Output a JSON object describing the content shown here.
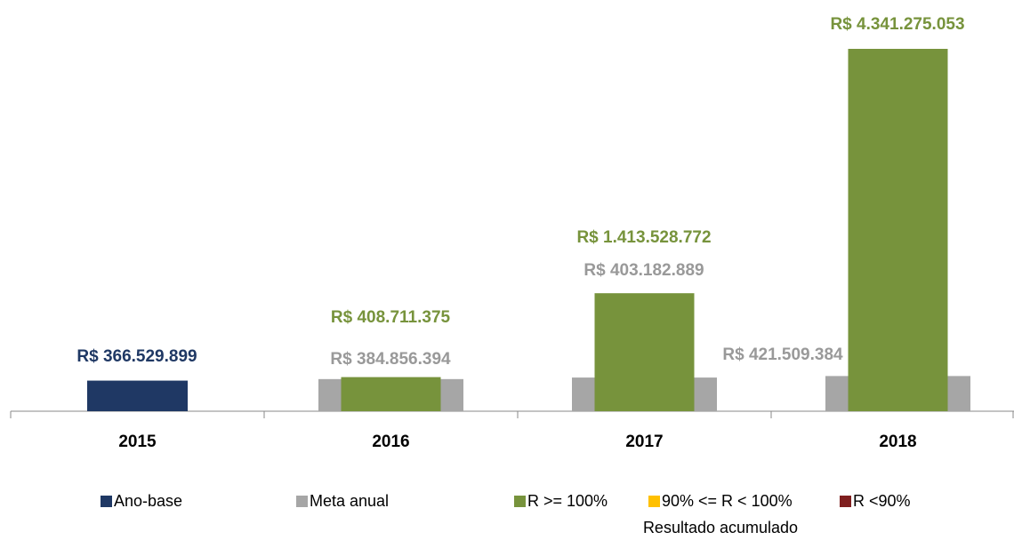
{
  "chart_data": {
    "type": "bar",
    "categories": [
      "2015",
      "2016",
      "2017",
      "2018"
    ],
    "series": [
      {
        "name": "Ano-base",
        "color": "#1f3864",
        "values": [
          366529899,
          null,
          null,
          null
        ],
        "value_labels": [
          "R$ 366.529.899",
          null,
          null,
          null
        ]
      },
      {
        "name": "Meta anual",
        "color": "#a6a6a6",
        "values": [
          null,
          384856394,
          403182889,
          421509384
        ],
        "value_labels": [
          null,
          "R$ 384.856.394",
          "R$ 403.182.889",
          "R$ 421.509.384"
        ]
      },
      {
        "name": "R >= 100%",
        "color": "#77933c",
        "values": [
          null,
          408711375,
          1413528772,
          4341275053
        ],
        "value_labels": [
          null,
          "R$ 408.711.375",
          "R$ 1.413.528.772",
          "R$ 4.341.275.053"
        ]
      },
      {
        "name": "90% <= R < 100%",
        "color": "#ffc000",
        "values": [
          null,
          null,
          null,
          null
        ]
      },
      {
        "name": "R <90%",
        "color": "#7f1f1f",
        "values": [
          null,
          null,
          null,
          null
        ]
      }
    ],
    "legend_title": "Resultado acumulado"
  }
}
